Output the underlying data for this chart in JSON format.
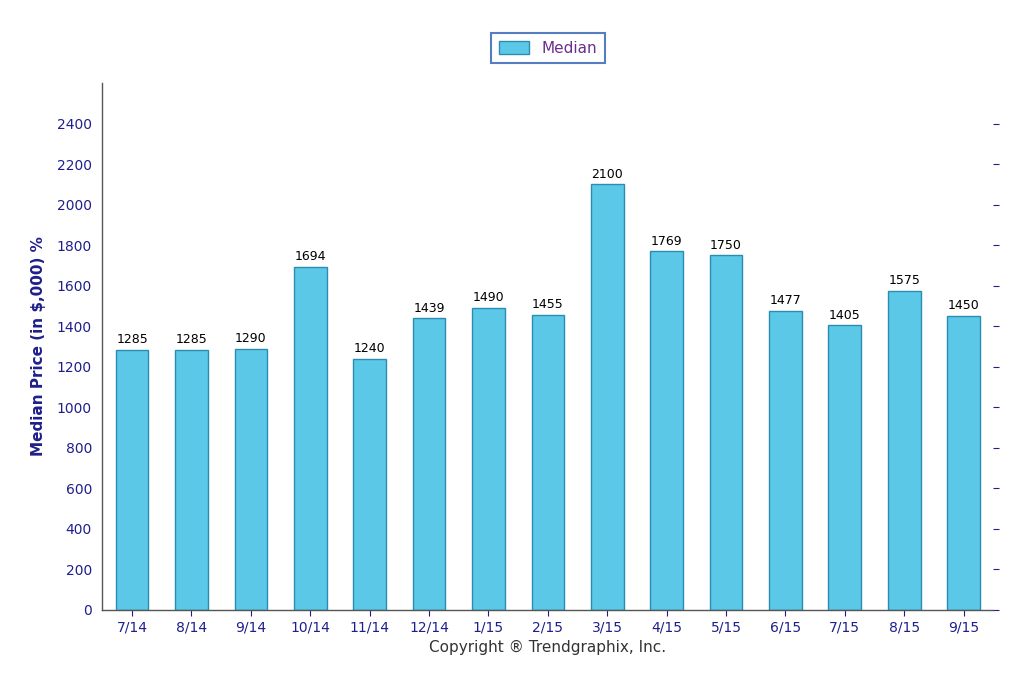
{
  "categories": [
    "7/14",
    "8/14",
    "9/14",
    "10/14",
    "11/14",
    "12/14",
    "1/15",
    "2/15",
    "3/15",
    "4/15",
    "5/15",
    "6/15",
    "7/15",
    "8/15",
    "9/15"
  ],
  "values": [
    1285,
    1285,
    1290,
    1694,
    1240,
    1439,
    1490,
    1455,
    2100,
    1769,
    1750,
    1477,
    1405,
    1575,
    1450
  ],
  "bar_color": "#5BC8E8",
  "bar_edge_color": "#2A8DB0",
  "ylabel": "Median Price (in $,000) %",
  "xlabel": "Copyright ® Trendgraphix, Inc.",
  "legend_label": "Median",
  "ylim": [
    0,
    2600
  ],
  "yticks": [
    0,
    200,
    400,
    600,
    800,
    1000,
    1200,
    1400,
    1600,
    1800,
    2000,
    2200,
    2400
  ],
  "background_color": "#ffffff",
  "label_fontsize": 11,
  "tick_fontsize": 10,
  "bar_label_fontsize": 9,
  "bar_width": 0.55,
  "ylabel_color": "#1F1F8B",
  "tick_color": "#1F1F8B",
  "xlabel_color": "#333333",
  "spine_color": "#555555",
  "legend_text_color": "#6B2E8B"
}
